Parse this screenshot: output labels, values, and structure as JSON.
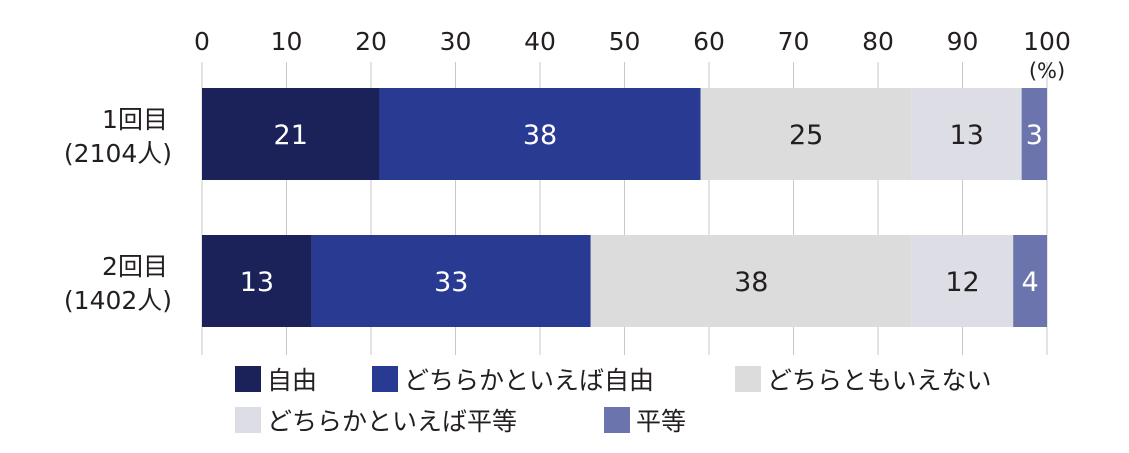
{
  "chart_data": {
    "type": "bar",
    "orientation": "horizontal",
    "stacked": true,
    "title": "",
    "xlabel": "",
    "ylabel": "",
    "unit": "(%)",
    "xlim": [
      0,
      100
    ],
    "xticks": [
      0,
      10,
      20,
      30,
      40,
      50,
      60,
      70,
      80,
      90,
      100
    ],
    "grid": true,
    "legend_position": "bottom",
    "categories": [
      {
        "line1": "1回目",
        "line2": "(2104人)"
      },
      {
        "line1": "2回目",
        "line2": "(1402人)"
      }
    ],
    "series": [
      {
        "name": "自由",
        "color": "#1b2259",
        "label_color": "#ffffff",
        "values": [
          21,
          13
        ]
      },
      {
        "name": "どちらかといえば自由",
        "color": "#293a93",
        "label_color": "#ffffff",
        "values": [
          38,
          33
        ]
      },
      {
        "name": "どちらともいえない",
        "color": "#dcdcdc",
        "label_color": "#231f20",
        "values": [
          25,
          38
        ]
      },
      {
        "name": "どちらかといえば平等",
        "color": "#dddde6",
        "label_color": "#231f20",
        "values": [
          13,
          12
        ]
      },
      {
        "name": "平等",
        "color": "#6b74ad",
        "label_color": "#ffffff",
        "values": [
          3,
          4
        ]
      }
    ]
  }
}
